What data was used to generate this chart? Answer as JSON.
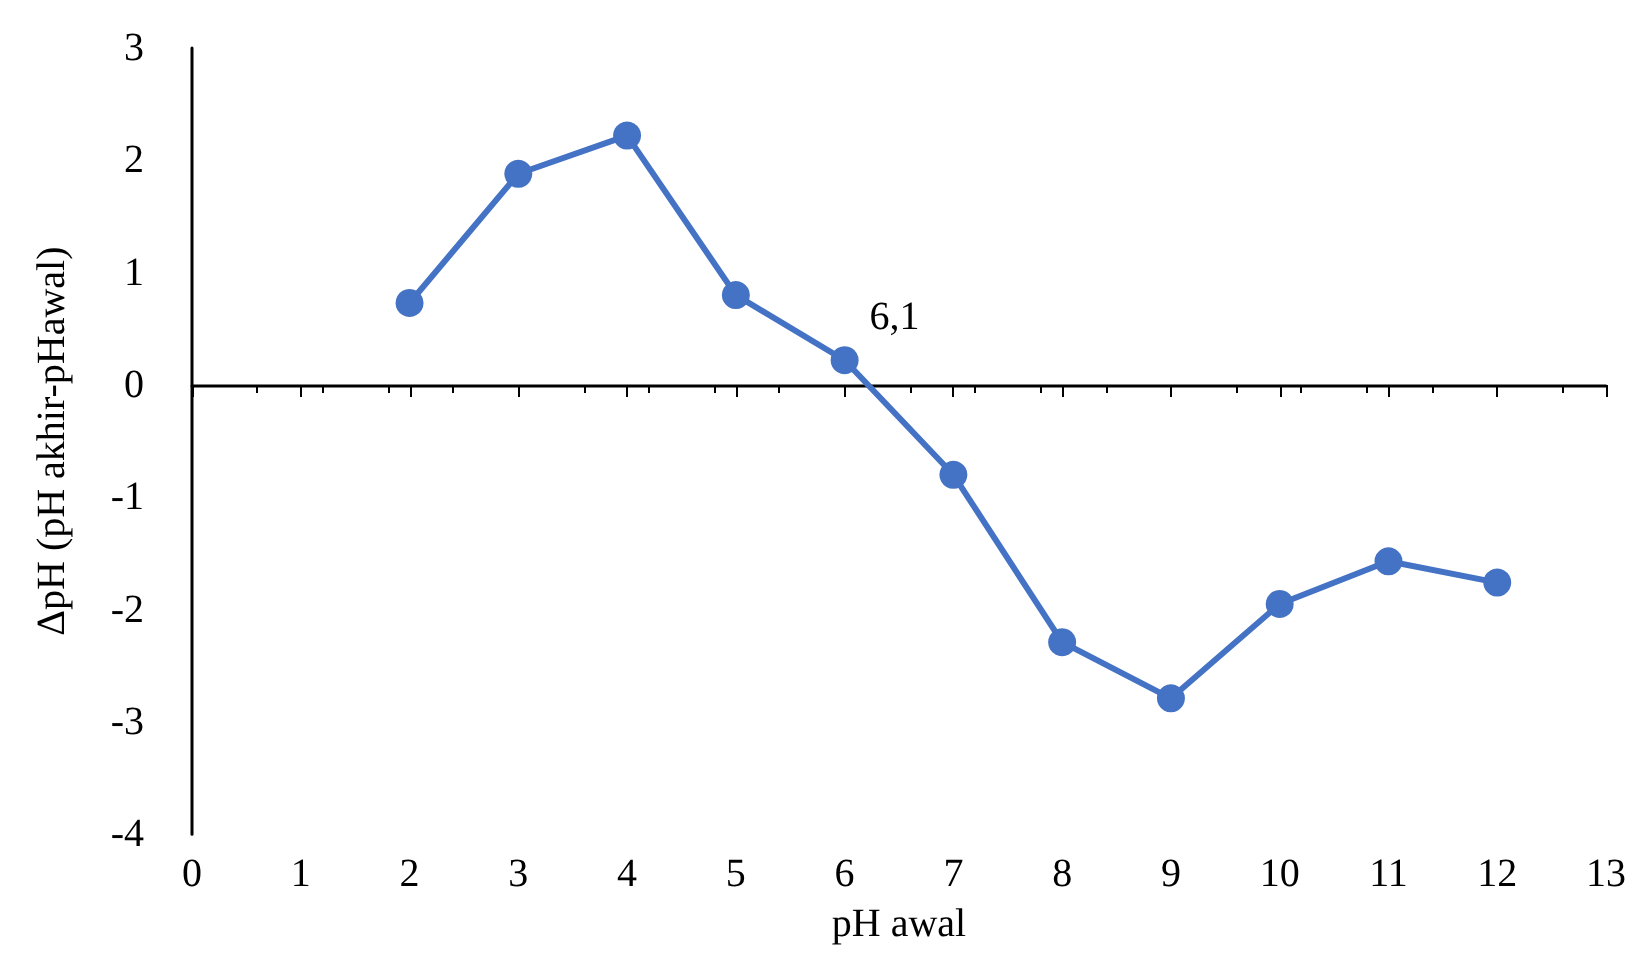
{
  "chart_data": {
    "type": "line",
    "xlabel": "pH awal",
    "ylabel": "ΔpH (pH akhir-pHawal)",
    "x": [
      2,
      3,
      4,
      5,
      6,
      7,
      8,
      9,
      10,
      11,
      12
    ],
    "series": [
      {
        "color": "#4472c4",
        "values": [
          0.73,
          1.88,
          2.22,
          0.8,
          0.22,
          -0.8,
          -2.29,
          -2.79,
          -1.95,
          -1.57,
          -1.76
        ]
      }
    ],
    "xlim": [
      0,
      13
    ],
    "xticks": [
      0,
      1,
      2,
      3,
      4,
      5,
      6,
      7,
      8,
      9,
      10,
      11,
      12,
      13
    ],
    "ylim": [
      -4,
      3
    ],
    "yticks": [
      -4,
      -3,
      -2,
      -1,
      0,
      1,
      2,
      3
    ],
    "annotations": [
      {
        "text": "6,1",
        "x": 6.1,
        "y": 0
      }
    ],
    "marker": "circle",
    "line_style": "solid"
  }
}
